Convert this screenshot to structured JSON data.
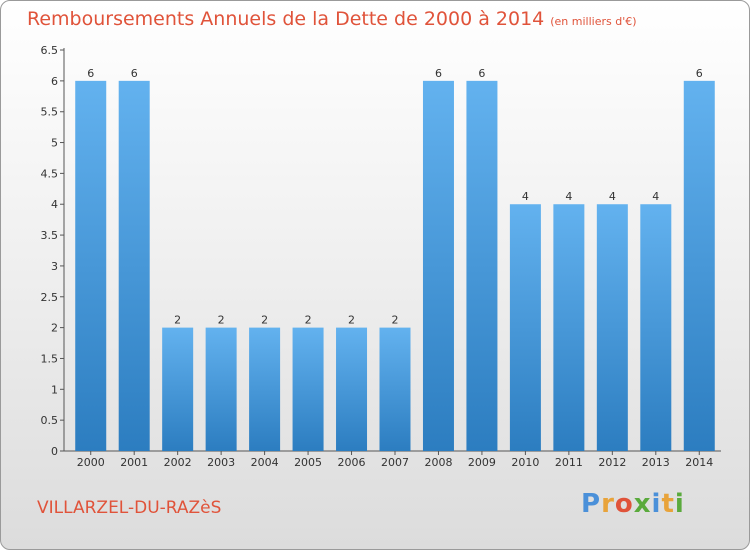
{
  "title": "Remboursements Annuels de la Dette de 2000 à 2014",
  "subtitle": "(en milliers d'€)",
  "commune": "VILLARZEL-DU-RAZèS",
  "logo": {
    "text": "Proxiti",
    "colors": [
      "#4a90d9",
      "#e8a33a",
      "#e0533a",
      "#5aaa3c",
      "#4a90d9",
      "#e8a33a",
      "#5aaa3c"
    ]
  },
  "colors": {
    "bar_dark": "#2c7dc0",
    "bar_light": "#63b2ef",
    "title": "#e0533a"
  },
  "chart_data": {
    "type": "bar",
    "categories": [
      "2000",
      "2001",
      "2002",
      "2003",
      "2004",
      "2005",
      "2006",
      "2007",
      "2008",
      "2009",
      "2010",
      "2011",
      "2012",
      "2013",
      "2014"
    ],
    "values": [
      6,
      6,
      2,
      2,
      2,
      2,
      2,
      2,
      6,
      6,
      4,
      4,
      4,
      4,
      6
    ],
    "data_labels": [
      "6",
      "6",
      "2",
      "2",
      "2",
      "2",
      "2",
      "2",
      "6",
      "6",
      "4",
      "4",
      "4",
      "4",
      "6"
    ],
    "y_ticks": [
      "0",
      "0.5",
      "1",
      "1.5",
      "2",
      "2.5",
      "3",
      "3.5",
      "4",
      "4.5",
      "5",
      "5.5",
      "6",
      "6.5"
    ],
    "ylim": [
      0,
      6.5
    ],
    "grid": false
  }
}
